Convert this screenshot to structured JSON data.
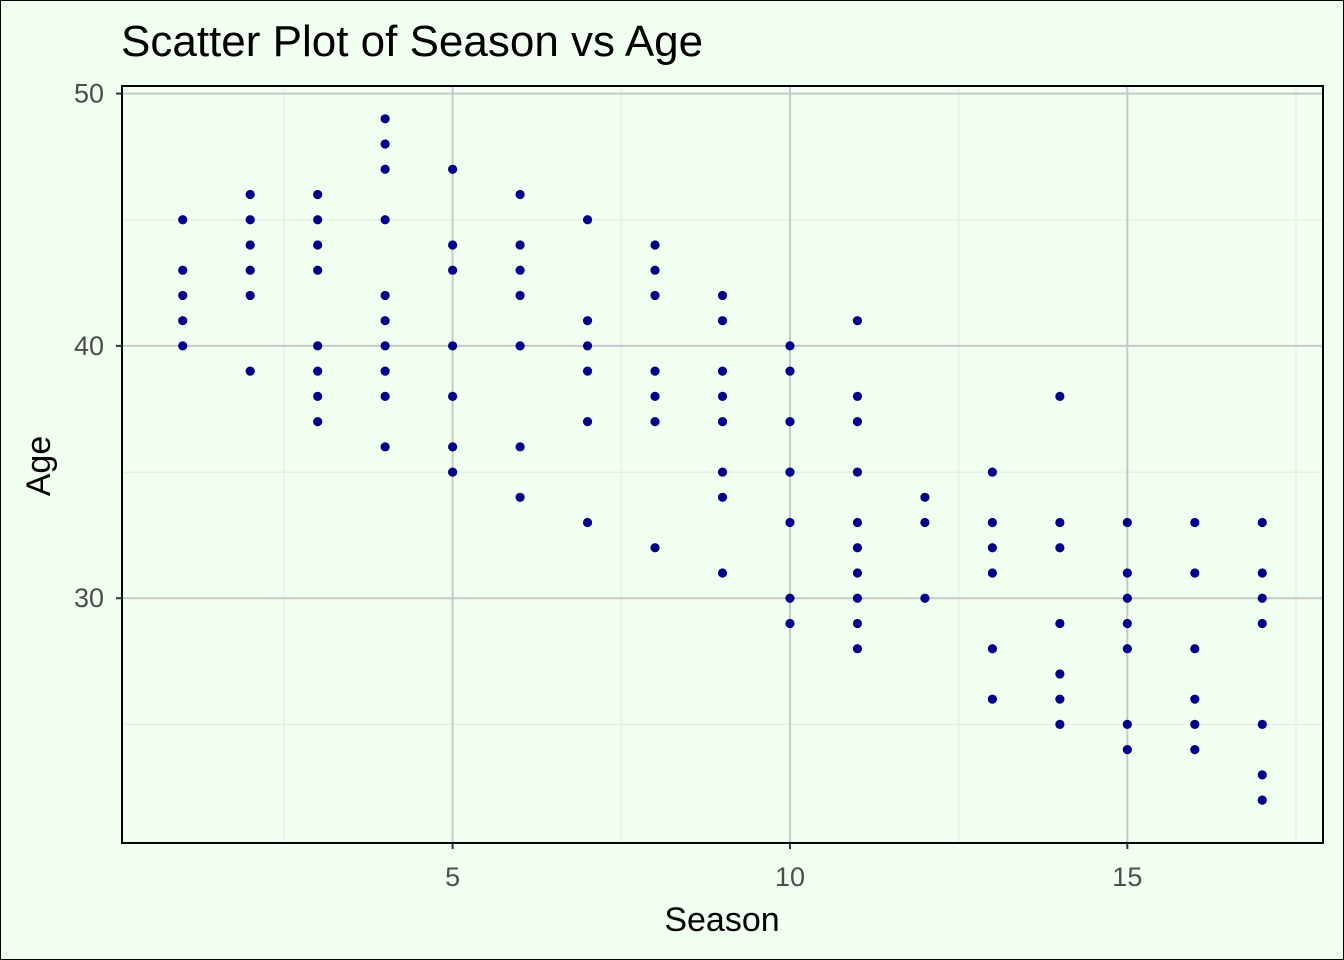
{
  "chart_data": {
    "type": "scatter",
    "title": "Scatter Plot of Season vs Age",
    "xlabel": "Season",
    "ylabel": "Age",
    "xlim": [
      0.1,
      17.9
    ],
    "ylim": [
      20.3,
      50.3
    ],
    "x_major_ticks": [
      5,
      10,
      15
    ],
    "x_tick_labels": [
      "5",
      "10",
      "15"
    ],
    "x_minor_ticks": [
      2.5,
      7.5,
      12.5,
      17.5
    ],
    "y_major_ticks": [
      30,
      40,
      50
    ],
    "y_tick_labels": [
      "30",
      "40",
      "50"
    ],
    "y_minor_ticks": [
      25,
      35,
      45
    ],
    "grid": true,
    "point_color": "#00008B",
    "background_color": "#F0FFF0",
    "points_by_season": [
      {
        "season": 1,
        "ages": [
          45,
          43,
          42,
          41,
          40
        ]
      },
      {
        "season": 2,
        "ages": [
          46,
          45,
          44,
          43,
          42,
          39
        ]
      },
      {
        "season": 3,
        "ages": [
          46,
          45,
          44,
          43,
          40,
          39,
          38,
          37
        ]
      },
      {
        "season": 4,
        "ages": [
          49,
          48,
          47,
          45,
          42,
          41,
          40,
          39,
          38,
          36
        ]
      },
      {
        "season": 5,
        "ages": [
          47,
          44,
          43,
          40,
          38,
          36,
          35
        ]
      },
      {
        "season": 6,
        "ages": [
          46,
          44,
          43,
          42,
          40,
          36,
          34
        ]
      },
      {
        "season": 7,
        "ages": [
          45,
          41,
          40,
          39,
          37,
          33
        ]
      },
      {
        "season": 8,
        "ages": [
          44,
          43,
          42,
          39,
          38,
          37,
          32
        ]
      },
      {
        "season": 9,
        "ages": [
          42,
          41,
          39,
          38,
          37,
          35,
          34,
          31
        ]
      },
      {
        "season": 10,
        "ages": [
          40,
          39,
          37,
          35,
          33,
          30,
          29
        ]
      },
      {
        "season": 11,
        "ages": [
          41,
          38,
          37,
          35,
          33,
          32,
          31,
          30,
          29,
          28
        ]
      },
      {
        "season": 12,
        "ages": [
          34,
          33,
          30
        ]
      },
      {
        "season": 13,
        "ages": [
          35,
          33,
          32,
          31,
          28,
          26
        ]
      },
      {
        "season": 14,
        "ages": [
          38,
          33,
          32,
          29,
          27,
          26,
          25
        ]
      },
      {
        "season": 15,
        "ages": [
          33,
          31,
          30,
          29,
          28,
          25,
          24
        ]
      },
      {
        "season": 16,
        "ages": [
          33,
          31,
          28,
          26,
          25,
          24
        ]
      },
      {
        "season": 17,
        "ages": [
          33,
          31,
          30,
          29,
          25,
          23,
          22
        ]
      }
    ]
  }
}
